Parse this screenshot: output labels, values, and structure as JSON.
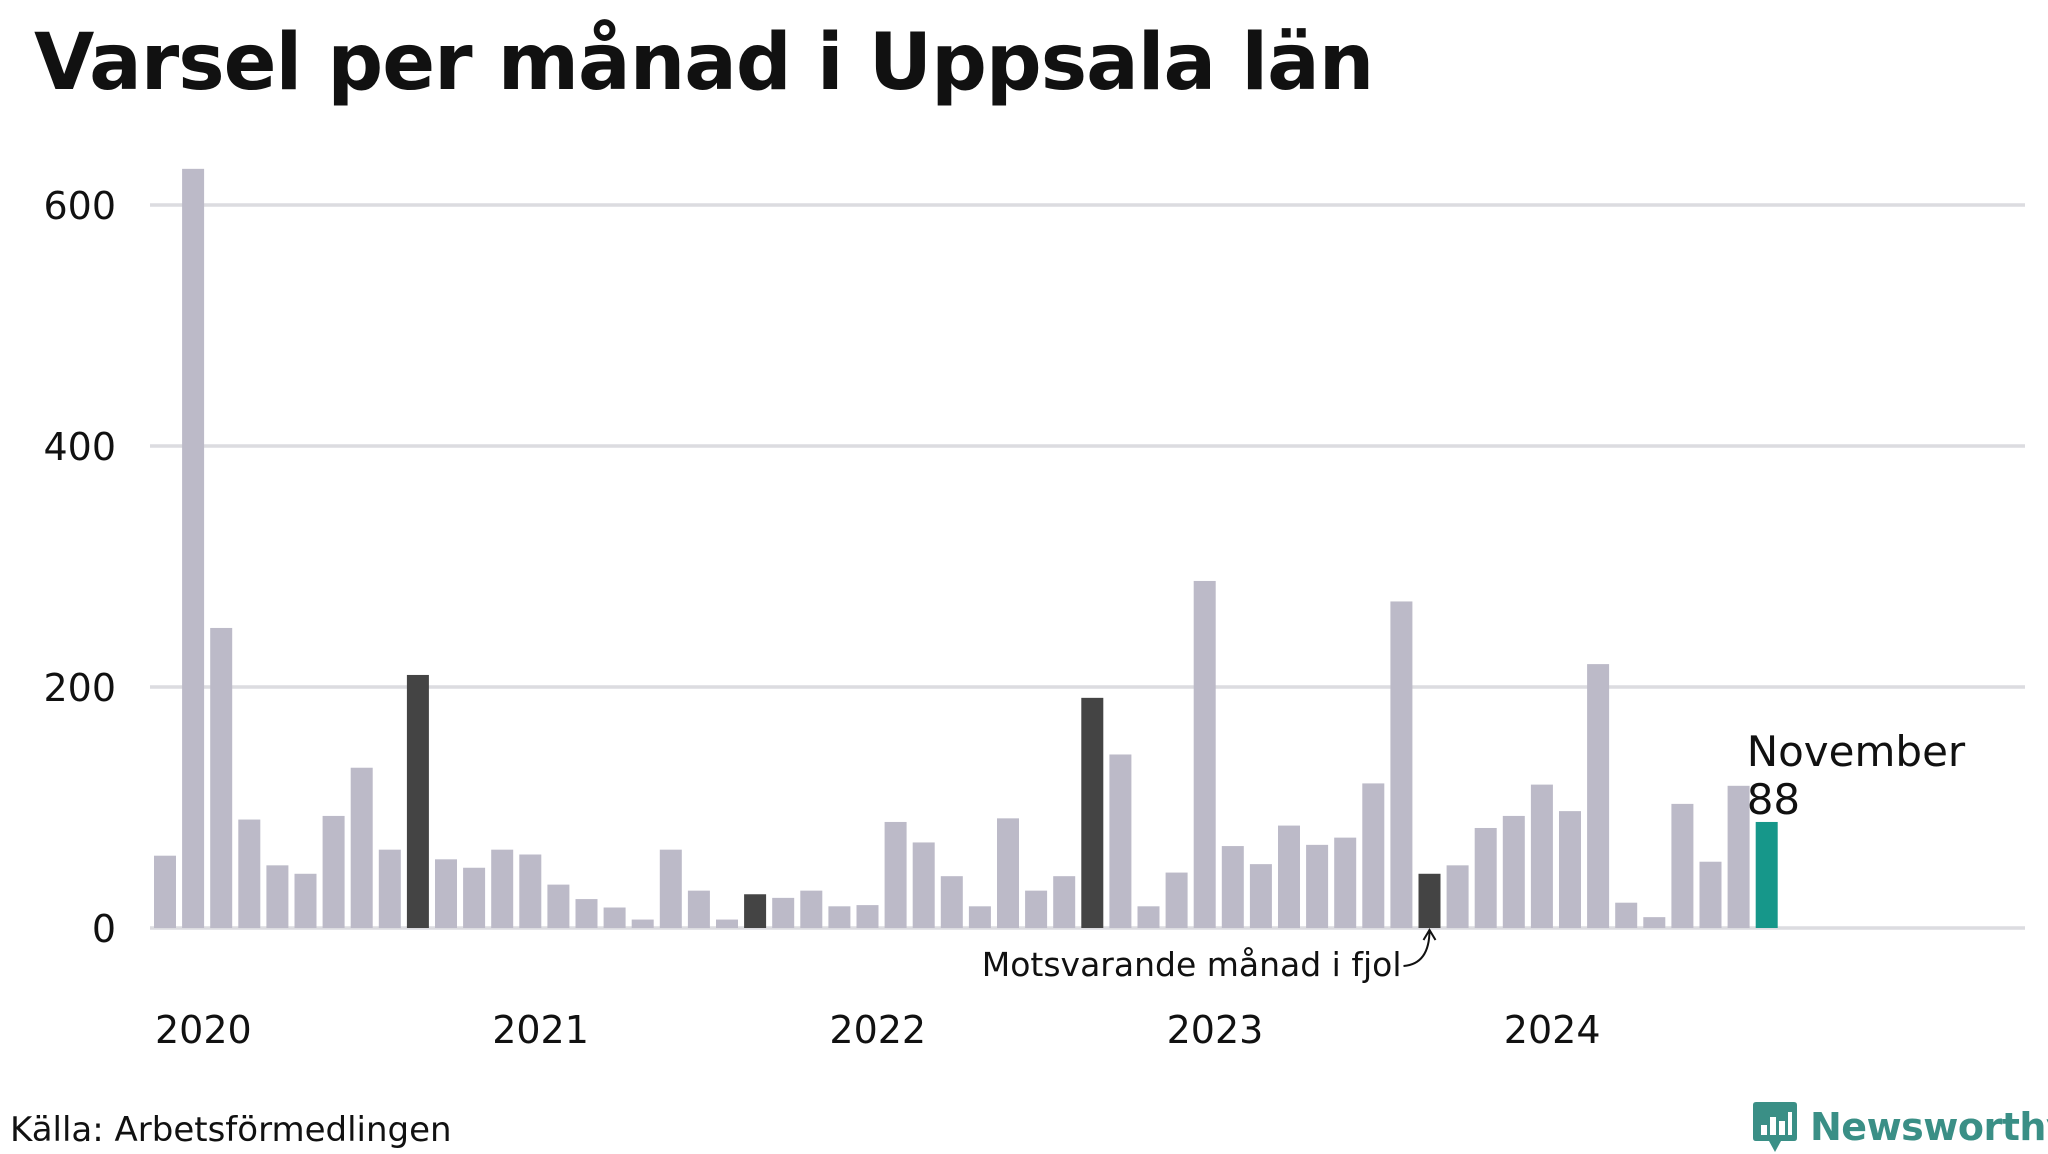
{
  "title": "Varsel per månad i Uppsala län",
  "source": "Källa: Arbetsförmedlingen",
  "logo": {
    "text": "Newsworthy",
    "icon": "bar-chart-bubble-icon",
    "color": "#3a8f86"
  },
  "chart_data": {
    "type": "bar",
    "title": "Varsel per månad i Uppsala län",
    "ylim": [
      0,
      630
    ],
    "yticks": [
      0,
      200,
      400,
      600
    ],
    "grid": true,
    "year_labels": [
      "2020",
      "2021",
      "2022",
      "2023",
      "2024"
    ],
    "colors": {
      "default": "#bcbac8",
      "same_month": "#444444",
      "current": "#16978a",
      "grid": "#dcdce0",
      "text": "#111111"
    },
    "values": [
      60,
      630,
      249,
      90,
      52,
      45,
      93,
      133,
      65,
      210,
      57,
      50,
      65,
      61,
      36,
      24,
      17,
      7,
      65,
      31,
      7,
      28,
      25,
      31,
      18,
      19,
      88,
      71,
      43,
      18,
      91,
      31,
      43,
      191,
      144,
      18,
      46,
      288,
      68,
      53,
      85,
      69,
      75,
      120,
      271,
      45,
      52,
      83,
      93,
      119,
      97,
      219,
      21,
      9,
      103,
      55,
      118,
      88
    ],
    "same_month_indices": [
      9,
      21,
      33,
      45
    ],
    "current_index": 57,
    "current_label": "November",
    "current_value_label": "88",
    "annotation": "Motsvarande månad i fjol"
  }
}
